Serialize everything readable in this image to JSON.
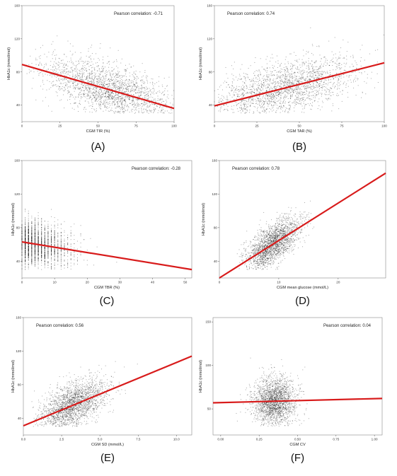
{
  "chart_data": [
    {
      "id": "A",
      "type": "scatter",
      "panel_label": "(A)",
      "xlabel": "CGM TIR (%)",
      "ylabel": "HbA1c (mmol/mol)",
      "xlim": [
        0,
        100
      ],
      "ylim": [
        20,
        160
      ],
      "x_ticks": [
        "0",
        "25",
        "50",
        "75",
        "100"
      ],
      "y_ticks": [
        "40",
        "80",
        "120",
        "160"
      ],
      "annotation": "Pearson correlation: -0.71",
      "regression": {
        "x": [
          0,
          100
        ],
        "y": [
          89,
          36
        ]
      },
      "points_summary": {
        "x_range": [
          0,
          100
        ],
        "y_range": [
          30,
          140
        ],
        "center": [
          58,
          60
        ],
        "spread": [
          22,
          16
        ],
        "n_points": 2000
      }
    },
    {
      "id": "B",
      "type": "scatter",
      "panel_label": "(B)",
      "xlabel": "CGM TAR (%)",
      "ylabel": "HbA1c (mmol/mol)",
      "xlim": [
        0,
        100
      ],
      "ylim": [
        20,
        160
      ],
      "x_ticks": [
        "0",
        "25",
        "50",
        "75",
        "100"
      ],
      "y_ticks": [
        "40",
        "80",
        "120",
        "160"
      ],
      "annotation": "Pearson correlation: 0.74",
      "regression": {
        "x": [
          0,
          100
        ],
        "y": [
          39,
          91
        ]
      },
      "points_summary": {
        "x_range": [
          0,
          100
        ],
        "y_range": [
          30,
          140
        ],
        "center": [
          40,
          60
        ],
        "spread": [
          22,
          16
        ],
        "n_points": 2000
      }
    },
    {
      "id": "C",
      "type": "scatter",
      "panel_label": "(C)",
      "xlabel": "CGM TBR (%)",
      "ylabel": "HbA1c (mmol/mol)",
      "xlim": [
        0,
        52
      ],
      "ylim": [
        20,
        160
      ],
      "x_ticks": [
        "0",
        "10",
        "20",
        "30",
        "40",
        "50"
      ],
      "y_ticks": [
        "40",
        "80",
        "120",
        "160"
      ],
      "annotation": "Pearson correlation: -0.28",
      "regression": {
        "x": [
          0,
          52
        ],
        "y": [
          63,
          30
        ]
      },
      "points_summary": {
        "x_range": [
          0,
          45
        ],
        "y_range": [
          30,
          130
        ],
        "center": [
          4,
          58
        ],
        "spread": [
          7,
          14
        ],
        "n_points": 2000,
        "discrete_x": true
      }
    },
    {
      "id": "D",
      "type": "scatter",
      "panel_label": "(D)",
      "xlabel": "CGM mean glucose (mmol/L)",
      "ylabel": "HbA1c (mmol/mol)",
      "xlim": [
        0,
        28
      ],
      "ylim": [
        20,
        160
      ],
      "x_ticks": [
        "0",
        "10",
        "20"
      ],
      "y_ticks": [
        "40",
        "80",
        "120",
        "160"
      ],
      "annotation": "Pearson correlation: 0.78",
      "regression": {
        "x": [
          0,
          28
        ],
        "y": [
          20,
          145
        ]
      },
      "points_summary": {
        "x_range": [
          3,
          25
        ],
        "y_range": [
          30,
          140
        ],
        "center": [
          9,
          58
        ],
        "spread": [
          2.3,
          12
        ],
        "n_points": 2000
      }
    },
    {
      "id": "E",
      "type": "scatter",
      "panel_label": "(E)",
      "xlabel": "CGM SD (mmol/L)",
      "ylabel": "HbA1c (mmol/mol)",
      "xlim": [
        0,
        11
      ],
      "ylim": [
        20,
        160
      ],
      "x_ticks": [
        "0.0",
        "2.5",
        "5.0",
        "7.5",
        "10.0"
      ],
      "y_ticks": [
        "40",
        "80",
        "120",
        "160"
      ],
      "annotation": "Pearson correlation: 0.56",
      "regression": {
        "x": [
          0,
          11
        ],
        "y": [
          31,
          114
        ]
      },
      "points_summary": {
        "x_range": [
          0.5,
          9
        ],
        "y_range": [
          30,
          140
        ],
        "center": [
          3.2,
          58
        ],
        "spread": [
          1.1,
          13
        ],
        "n_points": 2000
      }
    },
    {
      "id": "F",
      "type": "scatter",
      "panel_label": "(F)",
      "xlabel": "CGM CV",
      "ylabel": "HbA1c (mmol/mol)",
      "xlim": [
        -0.05,
        1.05
      ],
      "ylim": [
        20,
        155
      ],
      "x_ticks": [
        "0.00",
        "0.25",
        "0.50",
        "0.75",
        "1.00"
      ],
      "y_ticks": [
        "50",
        "100",
        "150"
      ],
      "annotation": "Pearson correlation: 0.04",
      "regression": {
        "x": [
          -0.05,
          1.05
        ],
        "y": [
          57,
          62
        ]
      },
      "points_summary": {
        "x_range": [
          0.1,
          0.8
        ],
        "y_range": [
          30,
          140
        ],
        "center": [
          0.35,
          58
        ],
        "spread": [
          0.07,
          14
        ],
        "n_points": 2000
      }
    }
  ]
}
